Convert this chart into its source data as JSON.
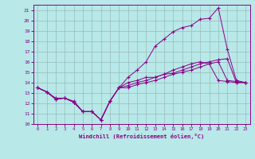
{
  "xlabel": "Windchill (Refroidissement éolien,°C)",
  "background_color": "#b8e8e8",
  "line_color": "#880088",
  "grid_color": "#99bbbb",
  "xlim": [
    -0.5,
    23.5
  ],
  "ylim": [
    10,
    21.5
  ],
  "xticks": [
    0,
    1,
    2,
    3,
    4,
    5,
    6,
    7,
    8,
    9,
    10,
    11,
    12,
    13,
    14,
    15,
    16,
    17,
    18,
    19,
    20,
    21,
    22,
    23
  ],
  "yticks": [
    10,
    11,
    12,
    13,
    14,
    15,
    16,
    17,
    18,
    19,
    20,
    21
  ],
  "series": [
    {
      "x": [
        0,
        1,
        2,
        3,
        4,
        5,
        6,
        7,
        8,
        9,
        10,
        11,
        12,
        13,
        14,
        15,
        16,
        17,
        18,
        19,
        20,
        21,
        22,
        23
      ],
      "y": [
        13.5,
        13.1,
        12.4,
        12.5,
        12.1,
        11.2,
        11.2,
        10.4,
        12.2,
        13.5,
        14.0,
        14.2,
        14.5,
        14.5,
        14.8,
        14.9,
        15.2,
        15.5,
        15.8,
        16.0,
        16.2,
        16.3,
        14.0,
        14.0
      ]
    },
    {
      "x": [
        0,
        1,
        2,
        3,
        4,
        5,
        6,
        7,
        8,
        9,
        10,
        11,
        12,
        13,
        14,
        15,
        16,
        17,
        18,
        19,
        20,
        21,
        22,
        23
      ],
      "y": [
        13.5,
        13.1,
        12.4,
        12.5,
        12.1,
        11.2,
        11.2,
        10.4,
        12.2,
        13.5,
        14.5,
        15.2,
        16.0,
        17.5,
        18.2,
        18.9,
        19.3,
        19.5,
        20.1,
        20.2,
        21.2,
        17.2,
        14.2,
        14.0
      ]
    },
    {
      "x": [
        0,
        1,
        2,
        3,
        4,
        5,
        6,
        7,
        8,
        9,
        10,
        11,
        12,
        13,
        14,
        15,
        16,
        17,
        18,
        19,
        20,
        21,
        22,
        23
      ],
      "y": [
        13.5,
        13.1,
        12.5,
        12.5,
        12.2,
        11.2,
        11.2,
        10.4,
        12.2,
        13.5,
        13.7,
        14.0,
        14.2,
        14.5,
        14.8,
        15.2,
        15.5,
        15.8,
        16.0,
        15.8,
        14.2,
        14.1,
        14.0,
        14.0
      ]
    },
    {
      "x": [
        0,
        1,
        2,
        3,
        4,
        5,
        6,
        7,
        8,
        9,
        10,
        11,
        12,
        13,
        14,
        15,
        16,
        17,
        18,
        19,
        20,
        21,
        22,
        23
      ],
      "y": [
        13.5,
        13.1,
        12.4,
        12.5,
        12.1,
        11.2,
        11.2,
        10.4,
        12.2,
        13.5,
        13.5,
        13.8,
        14.0,
        14.2,
        14.5,
        14.8,
        15.0,
        15.2,
        15.5,
        15.8,
        16.0,
        14.2,
        14.1,
        14.0
      ]
    }
  ]
}
